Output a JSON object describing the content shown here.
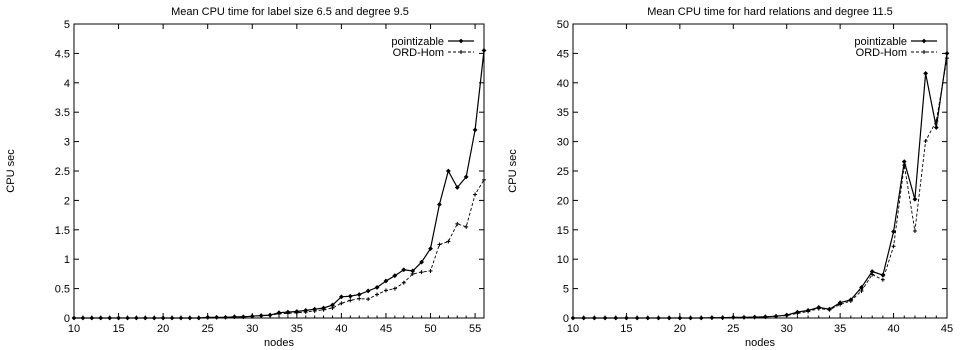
{
  "chart_data": [
    {
      "type": "line",
      "title": "Mean CPU time for label size 6.5 and degree 9.5",
      "xlabel": "nodes",
      "ylabel": "CPU sec",
      "xlim": [
        10,
        56
      ],
      "ylim": [
        0,
        5
      ],
      "x_ticks": [
        "10",
        "15",
        "20",
        "25",
        "30",
        "35",
        "40",
        "45",
        "50",
        "55"
      ],
      "y_ticks": [
        "0",
        "0.5",
        "1",
        "1.5",
        "2",
        "2.5",
        "3",
        "3.5",
        "4",
        "4.5",
        "5"
      ],
      "legend_position": "top-right",
      "series": [
        {
          "name": "pointizable",
          "style": "solid",
          "x": [
            10,
            11,
            12,
            13,
            14,
            15,
            16,
            17,
            18,
            19,
            20,
            21,
            22,
            23,
            24,
            25,
            26,
            27,
            28,
            29,
            30,
            31,
            32,
            33,
            34,
            35,
            36,
            37,
            38,
            39,
            40,
            41,
            42,
            43,
            44,
            45,
            46,
            47,
            48,
            49,
            50,
            51,
            52,
            53,
            54,
            55,
            56
          ],
          "y": [
            0,
            0,
            0,
            0,
            0,
            0,
            0,
            0,
            0,
            0,
            0,
            0,
            0,
            0,
            0,
            0.01,
            0.01,
            0.01,
            0.02,
            0.02,
            0.03,
            0.04,
            0.05,
            0.09,
            0.1,
            0.11,
            0.13,
            0.15,
            0.17,
            0.22,
            0.36,
            0.37,
            0.4,
            0.46,
            0.52,
            0.63,
            0.72,
            0.82,
            0.8,
            0.95,
            1.18,
            1.93,
            2.5,
            2.22,
            2.4,
            3.2,
            4.55
          ]
        },
        {
          "name": "ORD-Hom",
          "style": "dashed",
          "x": [
            10,
            11,
            12,
            13,
            14,
            15,
            16,
            17,
            18,
            19,
            20,
            21,
            22,
            23,
            24,
            25,
            26,
            27,
            28,
            29,
            30,
            31,
            32,
            33,
            34,
            35,
            36,
            37,
            38,
            39,
            40,
            41,
            42,
            43,
            44,
            45,
            46,
            47,
            48,
            49,
            50,
            51,
            52,
            53,
            54,
            55,
            56
          ],
          "y": [
            0,
            0,
            0,
            0,
            0,
            0,
            0,
            0,
            0,
            0,
            0,
            0,
            0,
            0,
            0,
            0.01,
            0.01,
            0.01,
            0.02,
            0.02,
            0.03,
            0.04,
            0.05,
            0.07,
            0.08,
            0.09,
            0.1,
            0.12,
            0.14,
            0.17,
            0.25,
            0.3,
            0.33,
            0.32,
            0.4,
            0.47,
            0.5,
            0.6,
            0.75,
            0.78,
            0.8,
            1.25,
            1.3,
            1.6,
            1.55,
            2.1,
            2.35
          ]
        }
      ]
    },
    {
      "type": "line",
      "title": "Mean CPU time for hard relations and degree 11.5",
      "xlabel": "nodes",
      "ylabel": "CPU sec",
      "xlim": [
        10,
        45
      ],
      "ylim": [
        0,
        50
      ],
      "x_ticks": [
        "10",
        "15",
        "20",
        "25",
        "30",
        "35",
        "40",
        "45"
      ],
      "y_ticks": [
        "0",
        "5",
        "10",
        "15",
        "20",
        "25",
        "30",
        "35",
        "40",
        "45",
        "50"
      ],
      "legend_position": "top-right",
      "series": [
        {
          "name": "pointizable",
          "style": "solid",
          "x": [
            10,
            11,
            12,
            13,
            14,
            15,
            16,
            17,
            18,
            19,
            20,
            21,
            22,
            23,
            24,
            25,
            26,
            27,
            28,
            29,
            30,
            31,
            32,
            33,
            34,
            35,
            36,
            37,
            38,
            39,
            40,
            41,
            42,
            43,
            44,
            45
          ],
          "y": [
            0,
            0,
            0,
            0,
            0,
            0,
            0,
            0,
            0,
            0,
            0,
            0,
            0,
            0.05,
            0.05,
            0.1,
            0.1,
            0.15,
            0.2,
            0.3,
            0.5,
            1,
            1.3,
            1.8,
            1.5,
            2.6,
            3.1,
            5.2,
            7.9,
            7.3,
            14.7,
            26.6,
            20.2,
            41.6,
            32.4,
            45
          ]
        },
        {
          "name": "ORD-Hom",
          "style": "dashed",
          "x": [
            10,
            11,
            12,
            13,
            14,
            15,
            16,
            17,
            18,
            19,
            20,
            21,
            22,
            23,
            24,
            25,
            26,
            27,
            28,
            29,
            30,
            31,
            32,
            33,
            34,
            35,
            36,
            37,
            38,
            39,
            40,
            41,
            42,
            43,
            44,
            45
          ],
          "y": [
            0,
            0,
            0,
            0,
            0,
            0,
            0,
            0,
            0,
            0,
            0,
            0,
            0,
            0.05,
            0.05,
            0.1,
            0.1,
            0.15,
            0.2,
            0.3,
            0.4,
            0.8,
            1.1,
            1.6,
            1.4,
            2.3,
            2.9,
            4.6,
            7.4,
            6.5,
            12.2,
            26,
            14.8,
            30.1,
            33.5,
            44.2
          ]
        }
      ]
    }
  ]
}
